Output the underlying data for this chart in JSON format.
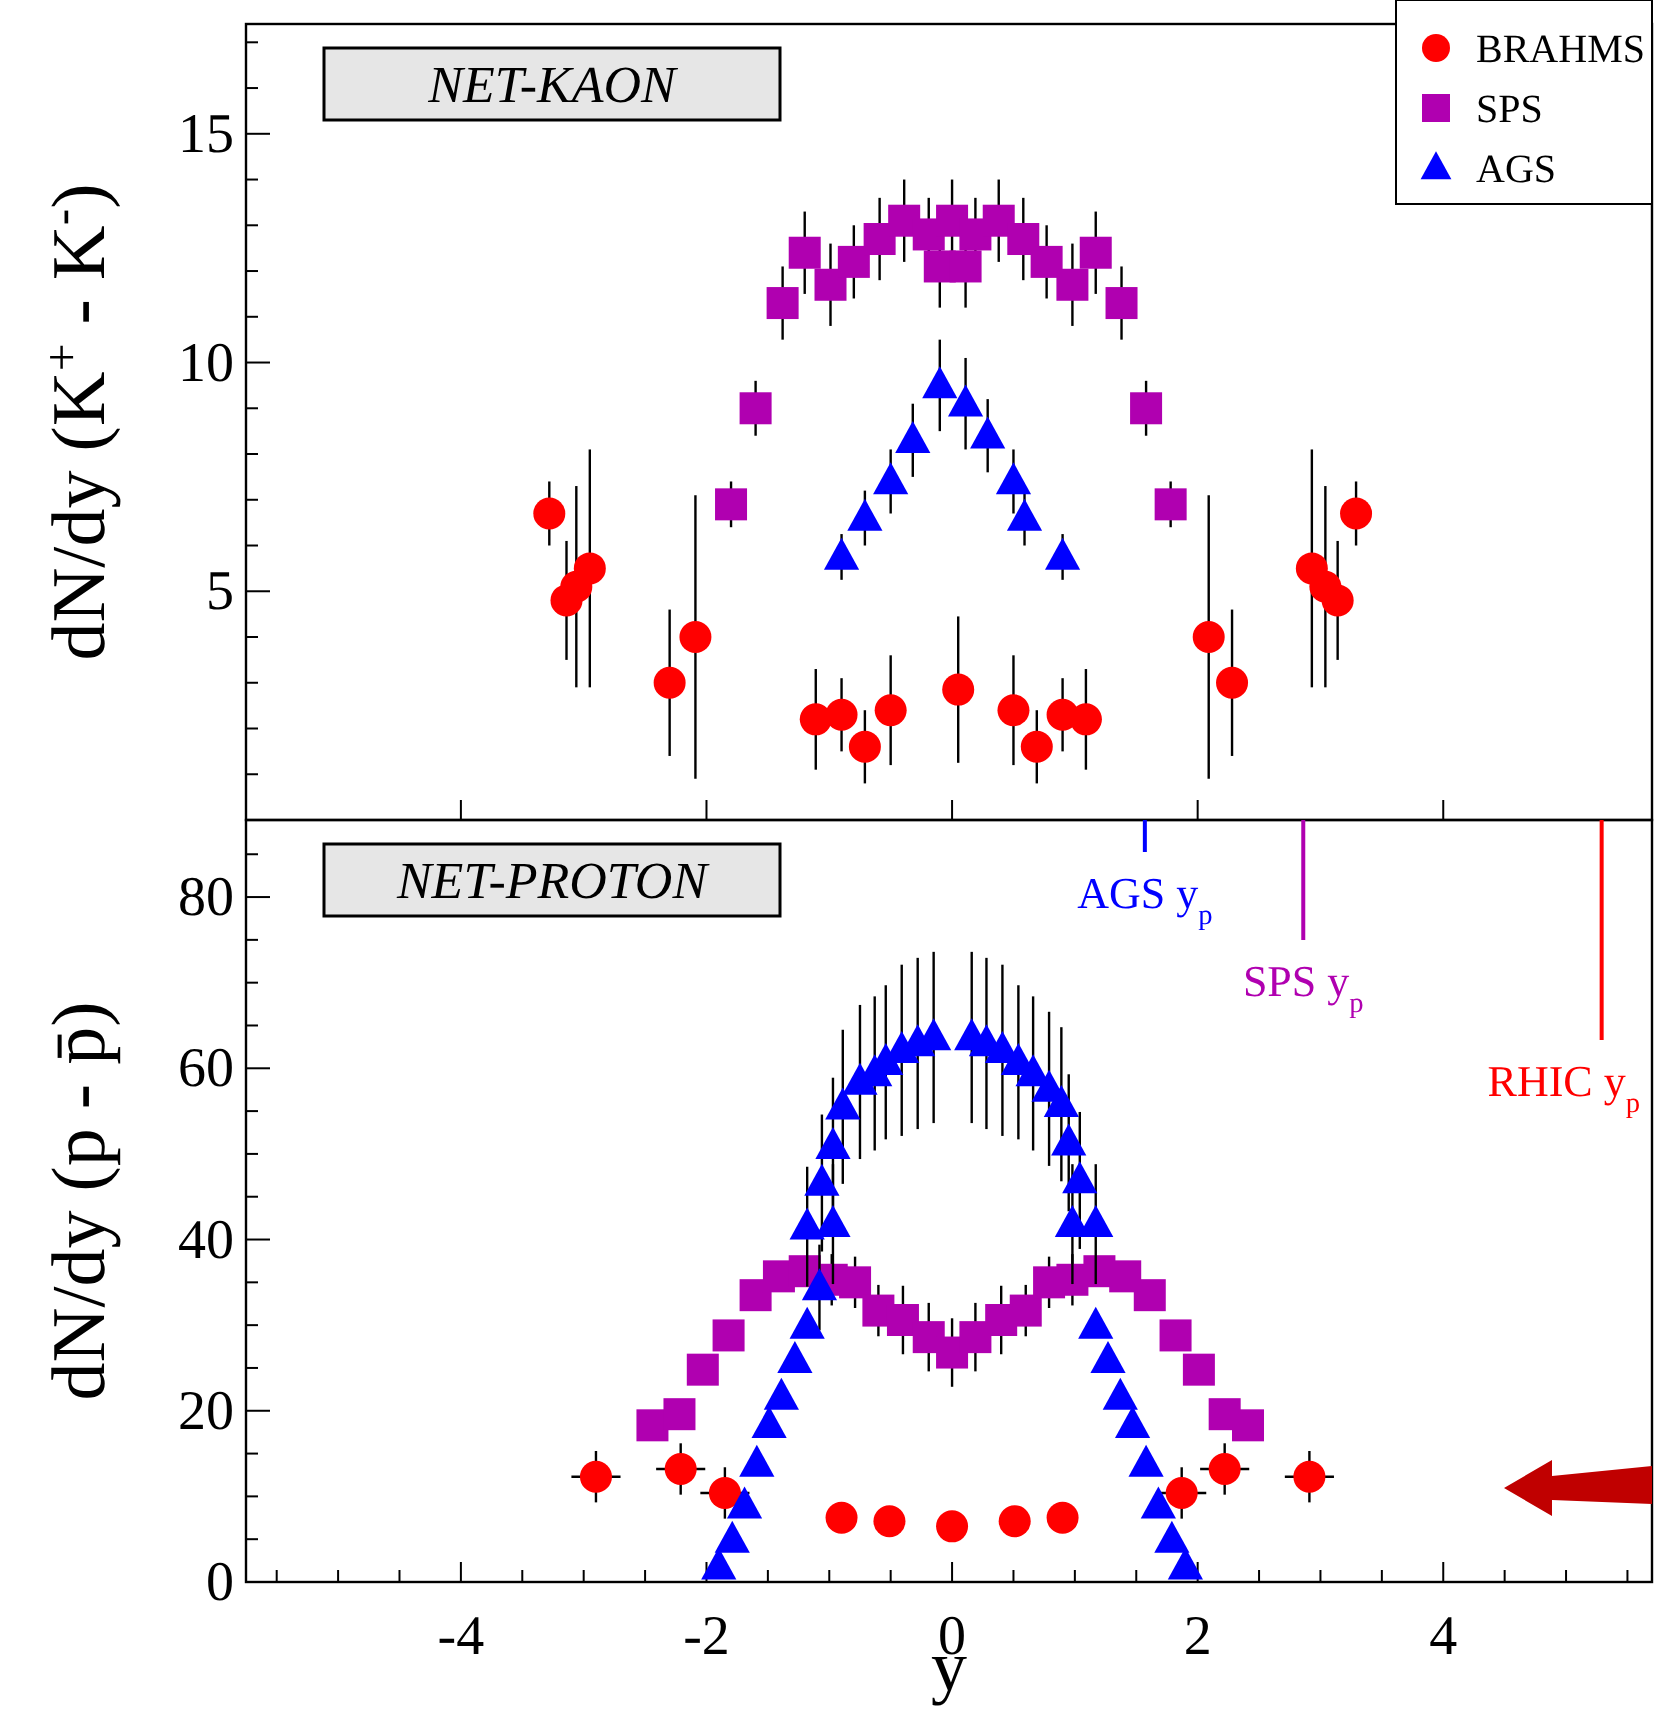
{
  "chart_data": [
    {
      "type": "scatter",
      "title": "NET-KAON",
      "ylabel": "dN/dy (K$^{+}$ - K$^{-}$)",
      "xlim": [
        -5.75,
        5.7
      ],
      "ylim": [
        0,
        17.4
      ],
      "legend": "top right",
      "tick_labels": "y",
      "xticks": [
        {
          "value": -4,
          "label": null
        },
        {
          "value": -2,
          "label": null
        },
        {
          "value": 0,
          "label": null
        },
        {
          "value": 2,
          "label": null
        },
        {
          "value": 4,
          "label": null
        }
      ],
      "yticks": [
        5,
        10,
        15,
        {
          "value": 1,
          "label": null
        },
        {
          "value": 2,
          "label": null
        },
        {
          "value": 3,
          "label": null
        },
        {
          "value": 4,
          "label": null
        },
        {
          "value": 6,
          "label": null
        },
        {
          "value": 7,
          "label": null
        },
        {
          "value": 8,
          "label": null
        },
        {
          "value": 9,
          "label": null
        },
        {
          "value": 11,
          "label": null
        },
        {
          "value": 12,
          "label": null
        },
        {
          "value": 13,
          "label": null
        },
        {
          "value": 14,
          "label": null
        },
        {
          "value": 16,
          "label": null
        },
        {
          "value": 17,
          "label": null
        }
      ],
      "series": [
        {
          "name": "BRAHMS",
          "color": "#ff0000",
          "marker": "circle",
          "x": [
            -3.28,
            -3.14,
            -3.06,
            -2.95,
            -2.3,
            -2.09,
            -1.11,
            -0.9,
            -0.71,
            -0.5,
            0.05,
            0.5,
            0.69,
            0.9,
            1.09,
            2.09,
            2.28,
            2.93,
            3.04,
            3.14,
            3.29
          ],
          "values": [
            6.7,
            4.8,
            5.1,
            5.5,
            3.0,
            4.0,
            2.2,
            2.3,
            1.6,
            2.4,
            2.85,
            2.4,
            1.6,
            2.3,
            2.2,
            4.0,
            3.0,
            5.5,
            5.1,
            4.8,
            6.7
          ],
          "errors": [
            0.7,
            1.3,
            2.2,
            2.6,
            1.6,
            3.1,
            1.1,
            0.8,
            0.8,
            1.2,
            1.6,
            1.2,
            0.8,
            0.8,
            1.1,
            3.1,
            1.6,
            2.6,
            2.2,
            1.3,
            0.7
          ]
        },
        {
          "name": "SPS",
          "color": "#b000b0",
          "marker": "square",
          "x": [
            -1.8,
            -1.6,
            -1.38,
            -1.2,
            -0.99,
            -0.8,
            -0.59,
            -0.39,
            -0.19,
            -0.1,
            0.0,
            0.11,
            0.19,
            0.38,
            0.58,
            0.77,
            0.98,
            1.17,
            1.38,
            1.58,
            1.78
          ],
          "values": [
            6.9,
            9.0,
            11.3,
            12.4,
            11.7,
            12.2,
            12.7,
            13.1,
            12.8,
            12.1,
            13.1,
            12.1,
            12.8,
            13.1,
            12.7,
            12.2,
            11.7,
            12.4,
            11.3,
            9.0,
            6.9
          ],
          "errors": [
            0.5,
            0.6,
            0.8,
            0.9,
            0.9,
            0.8,
            0.9,
            0.9,
            0.8,
            0.9,
            0.9,
            0.9,
            0.8,
            0.9,
            0.9,
            0.8,
            0.9,
            0.9,
            0.8,
            0.6,
            0.5
          ]
        },
        {
          "name": "AGS",
          "color": "#0000ff",
          "marker": "triangle",
          "x": [
            -0.9,
            -0.71,
            -0.5,
            -0.32,
            -0.1,
            0.11,
            0.29,
            0.5,
            0.59,
            0.9
          ],
          "values": [
            5.75,
            6.6,
            7.4,
            8.3,
            9.5,
            9.1,
            8.4,
            7.4,
            6.6,
            5.75
          ],
          "errors": [
            0.5,
            0.6,
            0.7,
            0.8,
            1.0,
            1.0,
            0.8,
            0.7,
            0.6,
            0.5
          ]
        }
      ]
    },
    {
      "type": "scatter",
      "title": "NET-PROTON",
      "xlabel": "y",
      "ylabel": "dN/dy (p - p̄)",
      "xlim": [
        -5.75,
        5.7
      ],
      "ylim": [
        0,
        89
      ],
      "xticks": [
        -4,
        -2,
        0,
        2,
        4,
        {
          "value": -5.5,
          "label": null
        },
        {
          "value": -5,
          "label": null
        },
        {
          "value": -4.5,
          "label": null
        },
        {
          "value": -3.5,
          "label": null
        },
        {
          "value": -3,
          "label": null
        },
        {
          "value": -2.5,
          "label": null
        },
        {
          "value": -1.5,
          "label": null
        },
        {
          "value": -1,
          "label": null
        },
        {
          "value": -0.5,
          "label": null
        },
        {
          "value": 0.5,
          "label": null
        },
        {
          "value": 1,
          "label": null
        },
        {
          "value": 1.5,
          "label": null
        },
        {
          "value": 2.5,
          "label": null
        },
        {
          "value": 3,
          "label": null
        },
        {
          "value": 3.5,
          "label": null
        },
        {
          "value": 4.5,
          "label": null
        },
        {
          "value": 5,
          "label": null
        },
        {
          "value": 5.5,
          "label": null
        }
      ],
      "yticks": [
        0,
        20,
        40,
        60,
        80,
        {
          "value": 5,
          "label": null
        },
        {
          "value": 10,
          "label": null
        },
        {
          "value": 15,
          "label": null
        },
        {
          "value": 25,
          "label": null
        },
        {
          "value": 30,
          "label": null
        },
        {
          "value": 35,
          "label": null
        },
        {
          "value": 45,
          "label": null
        },
        {
          "value": 50,
          "label": null
        },
        {
          "value": 55,
          "label": null
        },
        {
          "value": 65,
          "label": null
        },
        {
          "value": 70,
          "label": null
        },
        {
          "value": 75,
          "label": null
        },
        {
          "value": 85,
          "label": null
        }
      ],
      "ref_lines": [
        {
          "axis": "x",
          "value": 1.57,
          "label": "AGS y$_{p}$",
          "color": "#0000ff"
        },
        {
          "axis": "x",
          "value": 2.86,
          "label": "SPS y$_{p}$",
          "color": "#b000b0"
        },
        {
          "axis": "x",
          "value": 5.29,
          "label": "RHIC y$_{p}$",
          "color": "#ff0000"
        }
      ],
      "series": [
        {
          "color": "#ff0000",
          "marker": "circle",
          "x": [
            -2.9,
            -2.21,
            -1.85,
            -0.9,
            -0.51,
            0.0,
            0.51,
            0.9,
            1.87,
            2.22,
            2.91
          ],
          "values": [
            12.3,
            13.2,
            10.4,
            7.5,
            7.1,
            6.5,
            7.1,
            7.5,
            10.4,
            13.2,
            12.3
          ],
          "errors": [
            3,
            3,
            3,
            null,
            null,
            null,
            null,
            null,
            3,
            3,
            3
          ],
          "xerrors": [
            0.2,
            0.2,
            0.2,
            null,
            null,
            null,
            null,
            null,
            0.2,
            0.2,
            0.2
          ]
        },
        {
          "color": "#b000b0",
          "marker": "square",
          "x": [
            -2.44,
            -2.22,
            -2.03,
            -1.82,
            -1.6,
            -1.41,
            -1.2,
            -0.98,
            -0.79,
            -0.6,
            -0.4,
            -0.19,
            0.0,
            0.19,
            0.4,
            0.6,
            0.79,
            0.98,
            1.2,
            1.41,
            1.61,
            1.82,
            2.01,
            2.22,
            2.41
          ],
          "values": [
            18.3,
            19.6,
            24.8,
            28.8,
            33.5,
            35.7,
            36.3,
            35.3,
            35.0,
            31.7,
            30.6,
            28.6,
            26.8,
            28.6,
            30.6,
            31.7,
            35.0,
            35.3,
            36.3,
            35.7,
            33.5,
            28.8,
            24.8,
            19.6,
            18.3
          ],
          "errors": [
            null,
            null,
            null,
            null,
            null,
            null,
            null,
            3,
            3,
            3,
            4,
            4,
            4,
            4,
            4,
            3,
            3,
            3,
            null,
            null,
            null,
            null,
            null,
            null,
            null
          ]
        },
        {
          "color": "#0000ff",
          "marker": "triangle",
          "x": [
            -1.9,
            -1.79,
            -1.69,
            -1.59,
            -1.49,
            -1.39,
            -1.28,
            -1.18,
            -1.08,
            -1.18,
            -0.97,
            -1.06,
            -0.97,
            -0.89,
            -0.75,
            -0.63,
            -0.54,
            -0.41,
            -0.28,
            -0.15,
            0.16,
            0.28,
            0.41,
            0.54,
            0.66,
            0.79,
            0.89,
            0.95,
            1.04,
            0.98,
            1.17,
            1.17,
            1.27,
            1.37,
            1.47,
            1.58,
            1.68,
            1.79,
            1.9
          ],
          "values": [
            1.8,
            4.9,
            8.9,
            13.8,
            18.3,
            21.6,
            25.9,
            29.9,
            34.4,
            41.5,
            41.8,
            46.6,
            50.9,
            55.5,
            58.4,
            59.4,
            60.7,
            62.1,
            62.9,
            63.6,
            63.6,
            62.9,
            62.1,
            60.7,
            59.4,
            57.6,
            55.8,
            51.3,
            46.9,
            41.8,
            41.8,
            29.9,
            25.9,
            21.6,
            18.3,
            13.8,
            8.9,
            4.9,
            1.8
          ],
          "errors": [
            null,
            null,
            null,
            null,
            null,
            null,
            null,
            null,
            5,
            7,
            7,
            8,
            8,
            9,
            9,
            9,
            9,
            10,
            10,
            10,
            10,
            10,
            10,
            9,
            9,
            9,
            9,
            8,
            8,
            7,
            7,
            null,
            null,
            null,
            null,
            null,
            null,
            null,
            null
          ]
        }
      ]
    }
  ]
}
